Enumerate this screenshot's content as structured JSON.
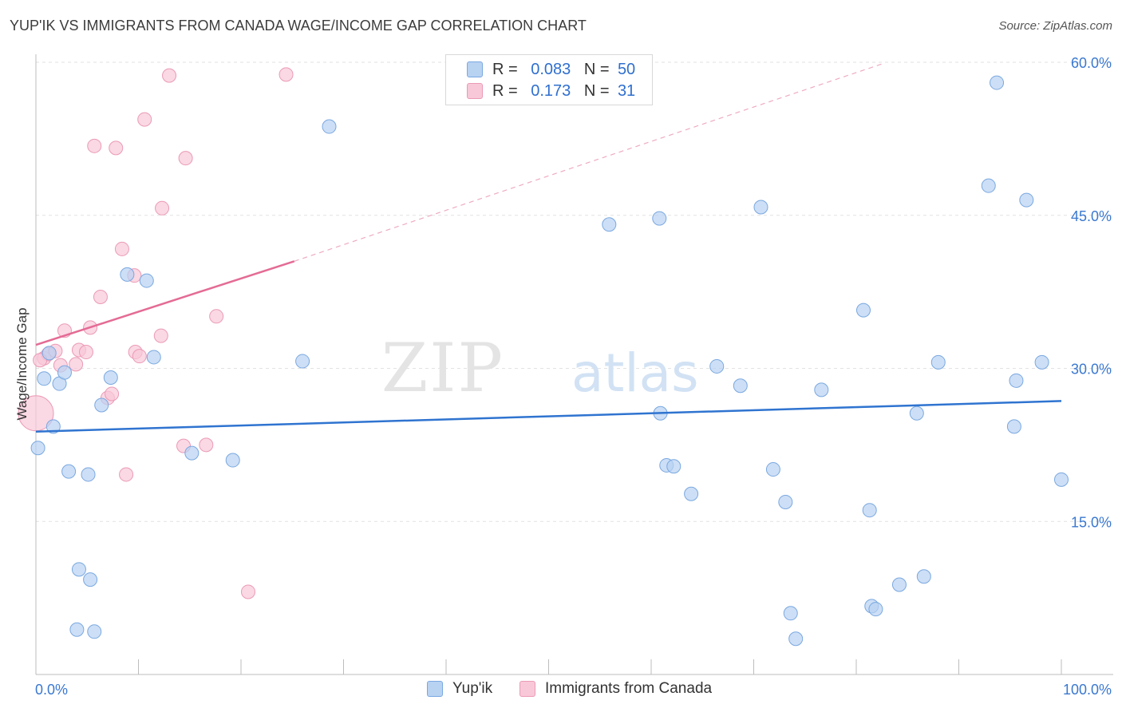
{
  "title": "YUP'IK VS IMMIGRANTS FROM CANADA WAGE/INCOME GAP CORRELATION CHART",
  "source": "Source: ZipAtlas.com",
  "watermark": {
    "zip": "ZIP",
    "atlas": "atlas"
  },
  "colors": {
    "blue_fill": "#b8d2f2",
    "blue_stroke": "#7aa8e0",
    "blue_line": "#2f74d0",
    "pink_fill": "#f8c8d8",
    "pink_stroke": "#eb9ab6",
    "pink_line": "#e46b95",
    "tick_label": "#3a78d0"
  },
  "legend": {
    "rows": [
      {
        "r_label": "R =",
        "r_value": "0.083",
        "n_label": "N =",
        "n_value": "50"
      },
      {
        "r_label": "R =",
        "r_value": "0.173",
        "n_label": "N =",
        "n_value": "31"
      }
    ]
  },
  "bottom_legend": [
    "Yup'ik",
    "Immigrants from Canada"
  ],
  "chart_data": {
    "type": "scatter",
    "xlabel": "",
    "ylabel": "Wage/Income Gap",
    "xlim": [
      0,
      100
    ],
    "ylim": [
      0,
      60
    ],
    "x_tick_labels": [
      "0.0%",
      "100.0%"
    ],
    "y_tick_labels": [
      "15.0%",
      "30.0%",
      "45.0%",
      "60.0%"
    ],
    "y_tick_values": [
      15,
      30,
      45,
      60
    ],
    "x_minor_ticks": [
      0,
      10,
      20,
      30,
      40,
      50,
      60,
      70,
      80,
      90,
      100
    ],
    "series": [
      {
        "name": "Yup'ik",
        "r": 0.083,
        "n": 50,
        "trend": {
          "x": [
            0,
            100
          ],
          "y": [
            23.8,
            26.8
          ]
        },
        "points": [
          [
            0.2,
            22.2
          ],
          [
            0.8,
            29.0
          ],
          [
            1.3,
            31.5
          ],
          [
            1.7,
            24.3
          ],
          [
            2.3,
            28.5
          ],
          [
            2.8,
            29.6
          ],
          [
            3.2,
            19.9
          ],
          [
            4.0,
            4.4
          ],
          [
            4.2,
            10.3
          ],
          [
            5.1,
            19.6
          ],
          [
            5.3,
            9.3
          ],
          [
            5.7,
            4.2
          ],
          [
            6.4,
            26.4
          ],
          [
            7.3,
            29.1
          ],
          [
            8.9,
            39.2
          ],
          [
            10.8,
            38.6
          ],
          [
            11.5,
            31.1
          ],
          [
            15.2,
            21.7
          ],
          [
            19.2,
            21.0
          ],
          [
            26.0,
            30.7
          ],
          [
            28.6,
            53.7
          ],
          [
            55.9,
            44.1
          ],
          [
            60.8,
            44.7
          ],
          [
            60.9,
            25.6
          ],
          [
            61.5,
            20.5
          ],
          [
            62.2,
            20.4
          ],
          [
            63.9,
            17.7
          ],
          [
            66.4,
            30.2
          ],
          [
            68.7,
            28.3
          ],
          [
            70.7,
            45.8
          ],
          [
            71.9,
            20.1
          ],
          [
            73.1,
            16.9
          ],
          [
            73.6,
            6.0
          ],
          [
            74.1,
            3.5
          ],
          [
            76.6,
            27.9
          ],
          [
            80.7,
            35.7
          ],
          [
            81.5,
            6.7
          ],
          [
            81.9,
            6.4
          ],
          [
            81.3,
            16.1
          ],
          [
            84.2,
            8.8
          ],
          [
            85.9,
            25.6
          ],
          [
            86.6,
            9.6
          ],
          [
            88.0,
            30.6
          ],
          [
            92.9,
            47.9
          ],
          [
            93.7,
            58.0
          ],
          [
            95.6,
            28.8
          ],
          [
            95.4,
            24.3
          ],
          [
            96.6,
            46.5
          ],
          [
            98.1,
            30.6
          ],
          [
            100.0,
            19.1
          ]
        ]
      },
      {
        "name": "Immigrants from Canada",
        "r": 0.173,
        "n": 31,
        "trend_solid": {
          "x": [
            0,
            25.2
          ],
          "y": [
            32.3,
            40.5
          ]
        },
        "trend_dashed": {
          "x": [
            25.2,
            82.7
          ],
          "y": [
            40.5,
            59.9
          ]
        },
        "points": [
          [
            0.0,
            25.6
          ],
          [
            0.8,
            31.0
          ],
          [
            1.2,
            31.4
          ],
          [
            1.9,
            31.7
          ],
          [
            2.4,
            30.3
          ],
          [
            2.8,
            33.7
          ],
          [
            3.9,
            30.4
          ],
          [
            4.2,
            31.8
          ],
          [
            4.9,
            31.6
          ],
          [
            5.3,
            34.0
          ],
          [
            5.7,
            51.8
          ],
          [
            6.3,
            37.0
          ],
          [
            7.0,
            27.1
          ],
          [
            7.4,
            27.5
          ],
          [
            7.8,
            51.6
          ],
          [
            8.4,
            41.7
          ],
          [
            8.8,
            19.6
          ],
          [
            9.6,
            39.1
          ],
          [
            9.7,
            31.6
          ],
          [
            10.1,
            31.2
          ],
          [
            10.6,
            54.4
          ],
          [
            12.3,
            45.7
          ],
          [
            12.2,
            33.2
          ],
          [
            13.0,
            58.7
          ],
          [
            14.4,
            22.4
          ],
          [
            14.6,
            50.6
          ],
          [
            16.6,
            22.5
          ],
          [
            17.6,
            35.1
          ],
          [
            20.7,
            8.1
          ],
          [
            24.4,
            58.8
          ],
          [
            0.4,
            30.8
          ]
        ]
      }
    ]
  }
}
